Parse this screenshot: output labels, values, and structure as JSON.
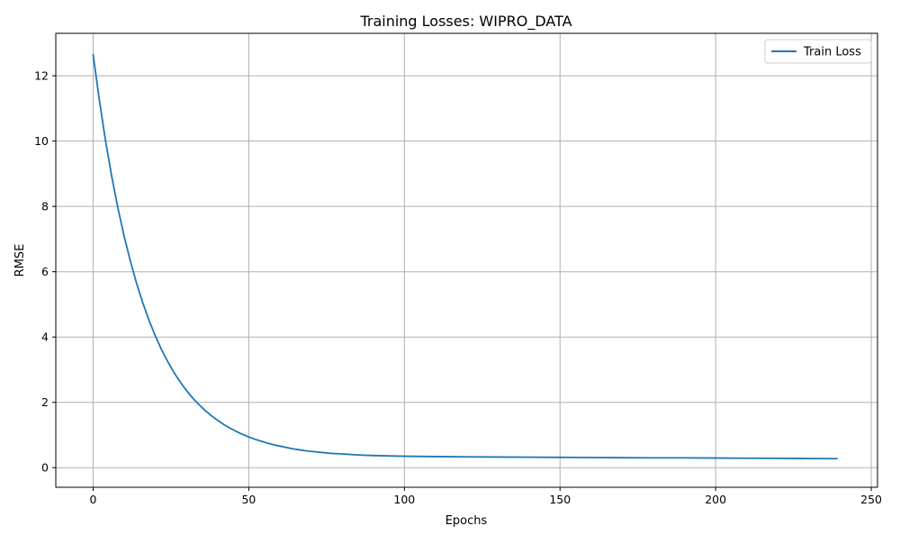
{
  "chart_data": {
    "type": "line",
    "title": "Training Losses: WIPRO_DATA",
    "xlabel": "Epochs",
    "ylabel": "RMSE",
    "xlim": [
      -12,
      252
    ],
    "ylim": [
      -0.6,
      13.3
    ],
    "xticks": [
      0,
      50,
      100,
      150,
      200,
      250
    ],
    "yticks": [
      0,
      2,
      4,
      6,
      8,
      10,
      12
    ],
    "grid": true,
    "legend_position": "top-right",
    "series": [
      {
        "name": "Train Loss",
        "color": "#1f77b4",
        "x": [
          0,
          2,
          4,
          6,
          8,
          10,
          12,
          14,
          16,
          18,
          20,
          22,
          24,
          26,
          28,
          30,
          32,
          34,
          36,
          38,
          40,
          42,
          44,
          46,
          48,
          50,
          52,
          54,
          56,
          58,
          60,
          62,
          64,
          66,
          68,
          70,
          72,
          74,
          76,
          78,
          80,
          85,
          90,
          95,
          100,
          110,
          120,
          130,
          140,
          150,
          160,
          170,
          180,
          190,
          200,
          210,
          220,
          230,
          239
        ],
        "y": [
          12.65,
          11.25,
          10.0,
          8.9,
          7.93,
          7.07,
          6.31,
          5.63,
          5.03,
          4.5,
          4.03,
          3.61,
          3.24,
          2.91,
          2.62,
          2.36,
          2.13,
          1.93,
          1.75,
          1.59,
          1.45,
          1.32,
          1.21,
          1.11,
          1.02,
          0.94,
          0.87,
          0.81,
          0.75,
          0.7,
          0.66,
          0.62,
          0.58,
          0.55,
          0.52,
          0.5,
          0.48,
          0.46,
          0.44,
          0.43,
          0.42,
          0.39,
          0.37,
          0.36,
          0.35,
          0.34,
          0.33,
          0.325,
          0.32,
          0.315,
          0.31,
          0.305,
          0.3,
          0.3,
          0.295,
          0.29,
          0.285,
          0.28,
          0.275
        ]
      }
    ]
  }
}
